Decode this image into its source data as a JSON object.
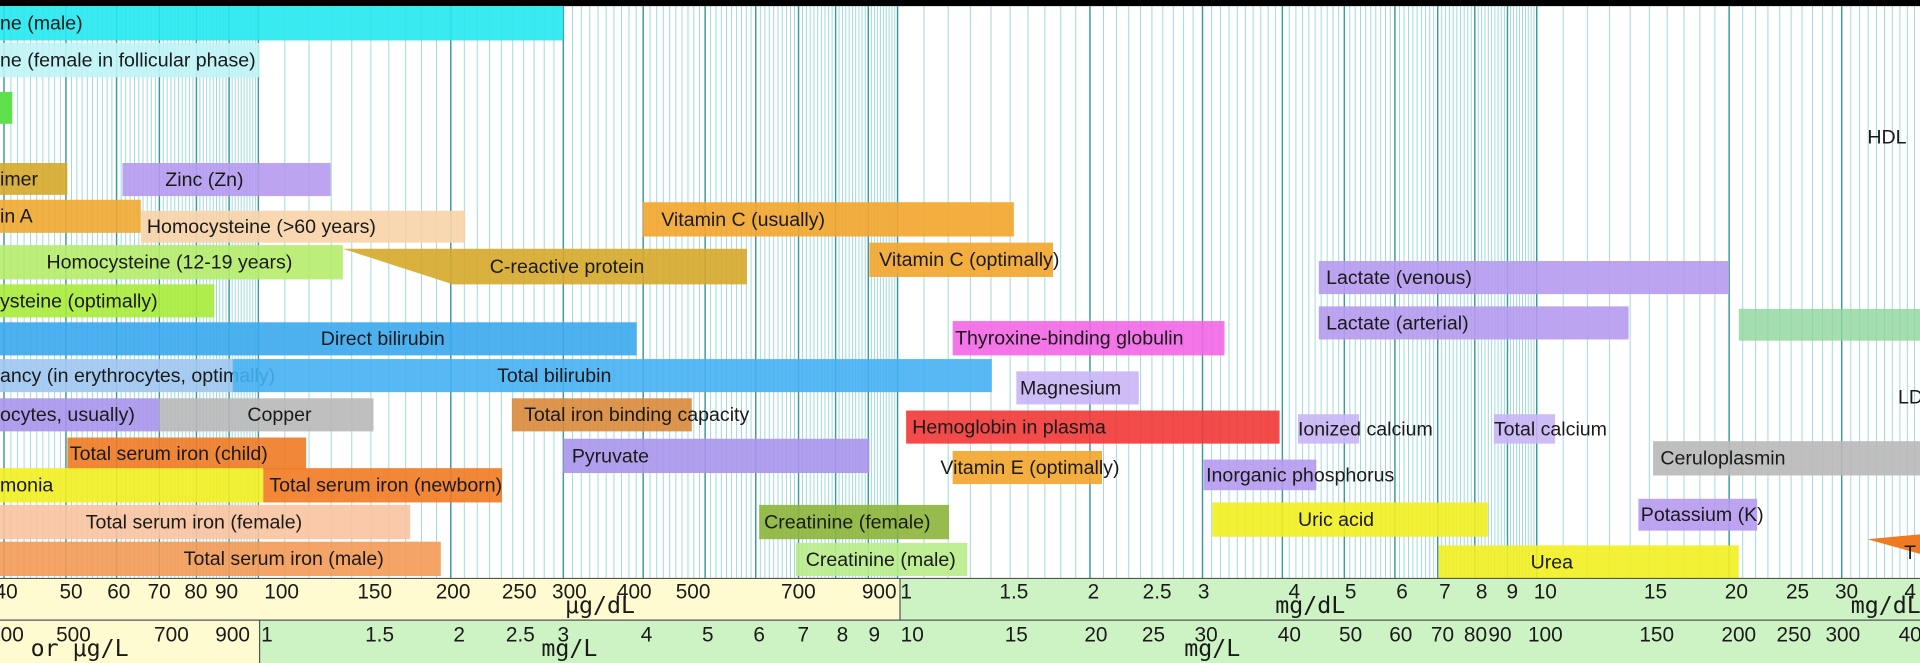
{
  "bars": [
    {
      "label": "ne (male)"
    },
    {
      "label": "ne (female in follicular phase)"
    },
    {
      "label": "imer"
    },
    {
      "label": "Zinc (Zn)"
    },
    {
      "label": "in A"
    },
    {
      "label": "Homocysteine (>60 years)"
    },
    {
      "label": "Vitamin C (usually)"
    },
    {
      "label": "Homocysteine (12-19 years)"
    },
    {
      "label": "C-reactive protein"
    },
    {
      "label": "Vitamin C (optimally)"
    },
    {
      "label": "ysteine (optimally)"
    },
    {
      "label": "Lactate (venous)"
    },
    {
      "label": "Direct bilirubin"
    },
    {
      "label": "Thyroxine-binding globulin"
    },
    {
      "label": "Lactate (arterial)"
    },
    {
      "label": "ancy (in erythrocytes, optimally)"
    },
    {
      "label": "Total bilirubin"
    },
    {
      "label": "Magnesium"
    },
    {
      "label": "ocytes, usually)"
    },
    {
      "label": "Copper"
    },
    {
      "label": "Total iron binding capacity"
    },
    {
      "label": "Hemoglobin in plasma"
    },
    {
      "label": "Ionized calcium"
    },
    {
      "label": "Total calcium"
    },
    {
      "label": "Ceruloplasmin"
    },
    {
      "label": "Total serum iron (child)"
    },
    {
      "label": "Pyruvate"
    },
    {
      "label": "Vitamin E (optimally)"
    },
    {
      "label": "Inorganic phosphorus"
    },
    {
      "label": "monia"
    },
    {
      "label": "Total serum iron (newborn)"
    },
    {
      "label": "Total serum iron (female)"
    },
    {
      "label": "Creatinine (female)"
    },
    {
      "label": "Uric acid"
    },
    {
      "label": "Potassium (K)"
    },
    {
      "label": "Total serum iron (male)"
    },
    {
      "label": "Creatinine (male)"
    },
    {
      "label": "Urea"
    },
    {
      "label": "HDL"
    },
    {
      "label": "LD"
    },
    {
      "label": "T"
    }
  ],
  "axis_top": {
    "ticks": [
      "40",
      "50",
      "60",
      "70",
      "80",
      "90",
      "100",
      "150",
      "200",
      "250",
      "300",
      "400",
      "500",
      "700",
      "900",
      "1",
      "1.5",
      "2",
      "2.5",
      "3",
      "4",
      "5",
      "6",
      "7",
      "8",
      "9",
      "10",
      "15",
      "20",
      "25",
      "30",
      "4"
    ],
    "units": [
      "μg/dL",
      "mg/dL",
      "mg/dL"
    ]
  },
  "axis_bottom": {
    "ticks": [
      "00",
      "500",
      "700",
      "900",
      "1",
      "1.5",
      "2",
      "2.5",
      "3",
      "4",
      "5",
      "6",
      "7",
      "8",
      "9",
      "10",
      "15",
      "20",
      "25",
      "30",
      "40",
      "50",
      "60",
      "70",
      "80",
      "90",
      "100",
      "150",
      "200",
      "250",
      "300",
      "40"
    ],
    "units": [
      "or μg/L",
      "mg/L",
      "mg/L"
    ]
  }
}
